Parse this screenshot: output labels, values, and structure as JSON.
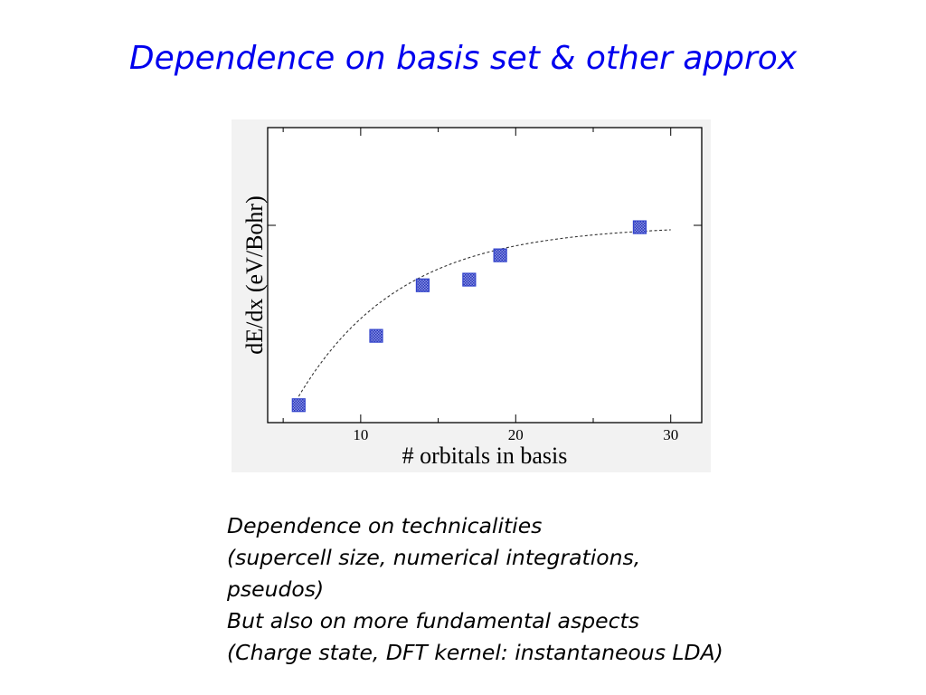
{
  "slide": {
    "title": "Dependence on basis set & other approx",
    "caption_lines": [
      "Dependence on technicalities",
      "(supercell size, numerical integrations,",
      "pseudos)",
      "But also on more fundamental aspects",
      "(Charge state, DFT kernel: instantaneous LDA)"
    ]
  },
  "chart_data": {
    "type": "scatter",
    "xlabel": "# orbitals in basis",
    "ylabel": "dE/dx (eV/Bohr)",
    "xlim": [
      4,
      32
    ],
    "x_ticks": [
      10,
      20,
      30
    ],
    "x_tick_labels": [
      "10",
      "20",
      "30"
    ],
    "y_tick_labels": [],
    "grid": false,
    "series": [
      {
        "points": [
          {
            "x": 6,
            "y": 0.04
          },
          {
            "x": 11,
            "y": 0.41
          },
          {
            "x": 14,
            "y": 0.68
          },
          {
            "x": 17,
            "y": 0.71
          },
          {
            "x": 19,
            "y": 0.84
          },
          {
            "x": 28,
            "y": 0.99
          }
        ],
        "marker": "square",
        "color": "#3344cc"
      }
    ],
    "fit_curve": {
      "style": "dashed",
      "color": "#333333",
      "x_range": [
        6,
        30
      ]
    }
  }
}
